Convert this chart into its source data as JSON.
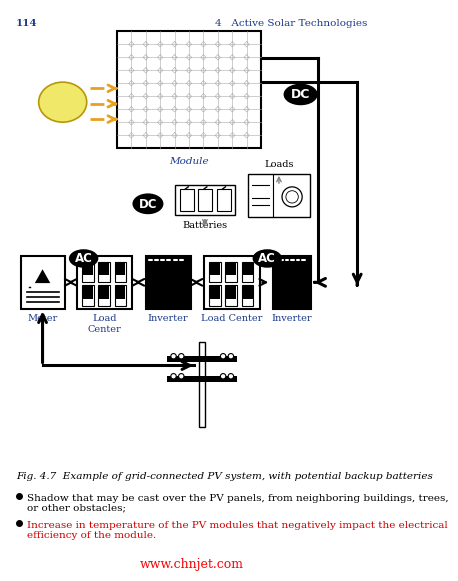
{
  "page_number": "114",
  "chapter": "4   Active Solar Technologies",
  "fig_caption": "Fig. 4.7  Example of grid-connected PV system, with potential backup batteries",
  "bullet1_black": "Shadow that may be cast over the PV panels, from neighboring buildings, trees,\nor other obstacles;",
  "bullet2_red": "Increase in temperature of the PV modules that negatively impact the electrical\nefficiency of the module.",
  "watermark": "www.chnjet.com",
  "module_label": "Module",
  "dc_label1": "DC",
  "dc_label2": "DC",
  "ac_label1": "AC",
  "ac_label2": "AC",
  "batteries_label": "Batteries",
  "loads_label": "Loads",
  "meter_label": "Meter",
  "load_center_label1": "Load\nCenter",
  "load_center_label2": "Load Center",
  "inverter_label1": "Inverter",
  "inverter_label2": "Inverter",
  "bg_color": "#ffffff",
  "text_color": "#000000",
  "orange_color": "#e8a020",
  "blue_label_color": "#1a3a8c",
  "red_color": "#cc0000",
  "gray_arrow_color": "#888888"
}
